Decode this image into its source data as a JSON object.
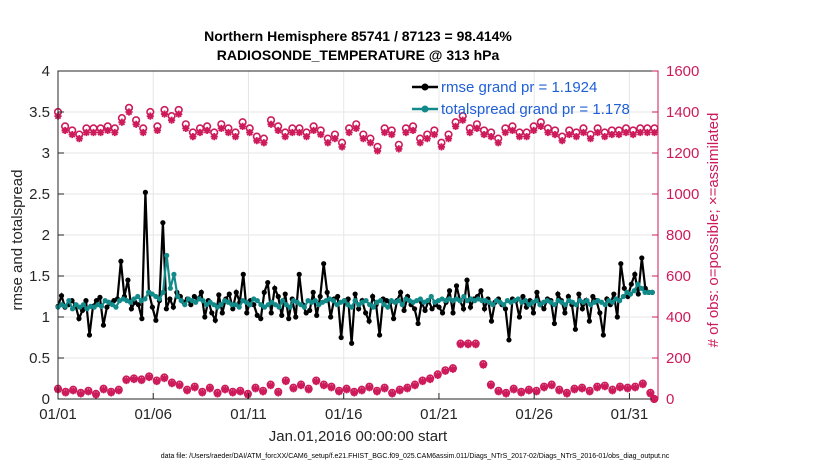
{
  "chart_data": {
    "type": "line",
    "title_line1": "Northern Hemisphere 85741 / 87123 = 98.414%",
    "title_line2": "RADIOSONDE_TEMPERATURE @ 313 hPa",
    "xlabel": "Jan.01,2016 00:00:00 start",
    "ylabel": "rmse and totalspread",
    "ylabel_right": "# of obs: o=possible; ×=assimilated",
    "xlim": [
      0,
      31.5
    ],
    "ylim": [
      0,
      4
    ],
    "ylim_right": [
      0,
      1600
    ],
    "x_ticks": [
      0,
      5,
      10,
      15,
      20,
      25,
      30
    ],
    "x_tick_labels": [
      "01/01",
      "01/06",
      "01/11",
      "01/16",
      "01/21",
      "01/26",
      "01/31"
    ],
    "y_ticks": [
      0,
      0.5,
      1,
      1.5,
      2,
      2.5,
      3,
      3.5,
      4
    ],
    "y_tick_labels": [
      "0",
      "0.5",
      "1",
      "1.5",
      "2",
      "2.5",
      "3",
      "3.5",
      "4"
    ],
    "y_right_ticks": [
      0,
      200,
      400,
      600,
      800,
      1000,
      1200,
      1400,
      1600
    ],
    "y_right_tick_labels": [
      "0",
      "200",
      "400",
      "600",
      "800",
      "1000",
      "1200",
      "1400",
      "1600"
    ],
    "legend": [
      "rmse grand pr = 1.1924",
      "totalspread grand pr = 1.178"
    ],
    "legend_location": "top-right",
    "footer": "data file: /Users/raeder/DAI/ATM_forcXX/CAM6_setup/f.e21.FHIST_BGC.f09_025.CAM6assim.011/Diags_NTrS_2017-02/Diags_NTrS_2016-01/obs_diag_output.nc",
    "colors": {
      "rmse": "#000000",
      "spread": "#138a8a",
      "counts": "#cc1a5a",
      "grid": "#e6e6e6"
    },
    "rmse": [
      1.13,
      1.26,
      1.12,
      1.15,
      1.2,
      1.14,
      0.98,
      1.08,
      1.2,
      0.78,
      1.13,
      1.2,
      1.24,
      0.9,
      1.12,
      1.17,
      1.2,
      1.22,
      1.68,
      1.25,
      1.45,
      1.1,
      1.18,
      1.15,
      0.98,
      2.52,
      1.3,
      1.12,
      0.96,
      1.2,
      2.15,
      1.1,
      1.22,
      1.12,
      1.3,
      1.25,
      1.18,
      1.22,
      1.15,
      1.25,
      1.22,
      1.3,
      1.0,
      1.2,
      1.05,
      0.96,
      1.27,
      1.05,
      1.22,
      1.28,
      1.1,
      1.3,
      1.18,
      1.52,
      1.05,
      1.2,
      1.15,
      1.02,
      0.98,
      1.3,
      1.42,
      1.05,
      1.35,
      1.25,
      1.02,
      1.28,
      0.98,
      1.22,
      1.0,
      1.52,
      1.15,
      1.05,
      1.08,
      1.3,
      1.02,
      1.25,
      1.65,
      1.3,
      1.0,
      1.22,
      1.25,
      0.75,
      1.2,
      1.22,
      0.68,
      1.28,
      1.1,
      1.2,
      1.05,
      0.95,
      1.25,
      1.15,
      0.78,
      1.22,
      1.2,
      1.18,
      0.98,
      1.2,
      1.3,
      1.08,
      1.25,
      1.15,
      1.1,
      0.92,
      1.18,
      1.08,
      1.2,
      1.1,
      1.15,
      1.12,
      1.05,
      1.18,
      1.32,
      1.05,
      1.38,
      1.2,
      1.1,
      1.45,
      1.12,
      1.22,
      1.25,
      1.32,
      1.1,
      1.22,
      0.95,
      1.18,
      1.22,
      1.15,
      1.1,
      0.72,
      1.22,
      1.2,
      1.0,
      1.25,
      1.12,
      1.2,
      1.05,
      1.3,
      1.15,
      1.1,
      1.22,
      1.2,
      0.92,
      1.28,
      1.2,
      1.05,
      1.25,
      1.15,
      0.85,
      1.28,
      1.1,
      1.2,
      0.95,
      1.25,
      1.2,
      1.05,
      0.78,
      1.22,
      1.15,
      1.28,
      1.0,
      1.65,
      1.35,
      1.25,
      1.4,
      1.52,
      1.28,
      1.72,
      1.35,
      1.3,
      1.3
    ],
    "spread": [
      1.12,
      1.15,
      1.13,
      1.2,
      1.1,
      1.15,
      1.12,
      1.15,
      1.1,
      1.13,
      1.12,
      1.15,
      1.13,
      1.2,
      1.18,
      1.15,
      1.12,
      1.2,
      1.22,
      1.2,
      1.18,
      1.22,
      1.25,
      1.2,
      1.22,
      1.3,
      1.28,
      1.25,
      1.22,
      1.3,
      1.75,
      1.35,
      1.52,
      1.25,
      1.2,
      1.15,
      1.22,
      1.2,
      1.18,
      1.22,
      1.2,
      1.15,
      1.18,
      1.15,
      1.12,
      1.15,
      1.2,
      1.18,
      1.15,
      1.15,
      1.12,
      1.2,
      1.18,
      1.15,
      1.22,
      1.2,
      1.15,
      1.12,
      1.15,
      1.18,
      1.15,
      1.12,
      1.2,
      1.15,
      1.12,
      1.2,
      1.18,
      1.15,
      1.12,
      1.2,
      1.18,
      1.2,
      1.15,
      1.18,
      1.2,
      1.22,
      1.2,
      1.15,
      1.18,
      1.2,
      1.15,
      1.12,
      1.2,
      1.15,
      1.18,
      1.2,
      1.15,
      1.12,
      1.18,
      1.2,
      1.15,
      1.12,
      1.2,
      1.18,
      1.2,
      1.15,
      1.22,
      1.2,
      1.18,
      1.2,
      1.22,
      1.18,
      1.2,
      1.25,
      1.18,
      1.2,
      1.22,
      1.2,
      1.22,
      1.2,
      1.22,
      1.2,
      1.25,
      1.2,
      1.22,
      1.2,
      1.22,
      1.2,
      1.2,
      1.18,
      1.15,
      1.2,
      1.18,
      1.15,
      1.2,
      1.18,
      1.2,
      1.22,
      1.18,
      1.2,
      1.15,
      1.18,
      1.2,
      1.15,
      1.18,
      1.2,
      1.18,
      1.15,
      1.2,
      1.18,
      1.15,
      1.2,
      1.18,
      1.15,
      1.2,
      1.18,
      1.2,
      1.15,
      1.18,
      1.2,
      1.18,
      1.15,
      1.2,
      1.18,
      1.22,
      1.2,
      1.25,
      1.3,
      1.28,
      1.32,
      1.4,
      1.35,
      1.3,
      1.3,
      1.3
    ],
    "n_possible": [
      1400,
      1320,
      1330,
      1300,
      1310,
      1260,
      1290,
      1270,
      1320,
      1310,
      1320,
      1340,
      1320,
      1360,
      1330,
      1310,
      1320,
      1310,
      1370,
      1320,
      1420,
      1360,
      1360,
      1330,
      1320,
      1430,
      1400,
      1400,
      1330,
      1370,
      1410,
      1420,
      1380,
      1400,
      1410,
      1330,
      1340,
      1330,
      1300,
      1320,
      1320,
      1340,
      1330,
      1330,
      1300,
      1300,
      1340,
      1270,
      1320,
      1320,
      1300,
      1300,
      1350,
      1290,
      1320,
      1310,
      1280,
      1350,
      1270,
      1330,
      1360,
      1280,
      1330,
      1320,
      1300,
      1290,
      1320,
      1300,
      1320,
      1380,
      1300,
      1270,
      1330,
      1300,
      1310,
      1320,
      1270,
      1280,
      1290,
      1300,
      1250,
      1230,
      1320,
      1290,
      1340,
      1320,
      1290,
      1290,
      1270,
      1310,
      1230,
      1240,
      1320,
      1290,
      1310,
      1290,
      1240,
      1280,
      1320,
      1300,
      1330,
      1300,
      1270,
      1300,
      1290,
      1330,
      1310,
      1300,
      1250,
      1280,
      1290,
      1340,
      1350,
      1360,
      1380,
      1310,
      1320,
      1290,
      1340,
      1330,
      1310,
      1320,
      1300,
      1310,
      1270,
      1330,
      1320,
      1300,
      1330,
      1320,
      1300,
      1330,
      1300,
      1320,
      1330,
      1380,
      1350,
      1360,
      1320,
      1300,
      1310,
      1330,
      1280,
      1260,
      1310,
      1320,
      1300,
      1330,
      1320,
      1310,
      1290,
      1300,
      1320,
      1290,
      1300,
      1330,
      1310,
      1320,
      1310,
      1330,
      1320,
      1300,
      1310,
      1330,
      1320,
      1310,
      1320,
      1310,
      1320
    ],
    "n_assim": [
      1380,
      1300,
      1310,
      1280,
      1290,
      1240,
      1270,
      1250,
      1300,
      1290,
      1300,
      1320,
      1300,
      1340,
      1310,
      1290,
      1300,
      1290,
      1350,
      1300,
      1400,
      1340,
      1340,
      1310,
      1300,
      1410,
      1380,
      1380,
      1310,
      1350,
      1390,
      1400,
      1360,
      1380,
      1390,
      1310,
      1320,
      1310,
      1280,
      1300,
      1300,
      1320,
      1310,
      1310,
      1280,
      1280,
      1320,
      1250,
      1300,
      1300,
      1280,
      1280,
      1330,
      1270,
      1300,
      1290,
      1260,
      1330,
      1250,
      1310,
      1340,
      1260,
      1310,
      1300,
      1280,
      1270,
      1300,
      1280,
      1300,
      1360,
      1280,
      1250,
      1310,
      1280,
      1290,
      1300,
      1250,
      1260,
      1270,
      1280,
      1230,
      1210,
      1300,
      1270,
      1320,
      1300,
      1270,
      1270,
      1250,
      1290,
      1210,
      1220,
      1300,
      1270,
      1290,
      1270,
      1220,
      1260,
      1300,
      1280,
      1310,
      1280,
      1250,
      1280,
      1270,
      1310,
      1290,
      1280,
      1230,
      1260,
      1270,
      1320,
      1330,
      1340,
      1360,
      1290,
      1300,
      1270,
      1320,
      1310,
      1290,
      1300,
      1280,
      1290,
      1250,
      1310,
      1300,
      1280,
      1310,
      1300,
      1280,
      1310,
      1280,
      1300,
      1310,
      1360,
      1330,
      1340,
      1300,
      1280,
      1290,
      1310,
      1260,
      1240,
      1290,
      1300,
      1280,
      1310,
      1300,
      1290,
      1270,
      1280,
      1300,
      1270,
      1280,
      1310,
      1290,
      1300,
      1290,
      1310,
      1300,
      1280,
      1290,
      1310,
      1300,
      1290,
      1300,
      1290,
      1300
    ],
    "n_possible_low": [
      50,
      35,
      45,
      30,
      40,
      25,
      50,
      35,
      45,
      95,
      100,
      95,
      110,
      90,
      105,
      80,
      70,
      45,
      60,
      35,
      55,
      30,
      50,
      35,
      40,
      25,
      55,
      40,
      70,
      35,
      90,
      55,
      70,
      50,
      90,
      70,
      60,
      40,
      50,
      35,
      45,
      60,
      40,
      55,
      30,
      45,
      55,
      70,
      90,
      100,
      120,
      140,
      150,
      270,
      270,
      270,
      170,
      70,
      40,
      30,
      50,
      35,
      45,
      40,
      60,
      70,
      45,
      30,
      50,
      55,
      40,
      60,
      65,
      45,
      60,
      55,
      60,
      75,
      30,
      0
    ],
    "n_assim_low": [
      45,
      30,
      40,
      25,
      35,
      20,
      45,
      30,
      40,
      90,
      95,
      90,
      105,
      85,
      100,
      75,
      65,
      40,
      55,
      30,
      50,
      25,
      45,
      30,
      35,
      20,
      50,
      35,
      65,
      30,
      85,
      50,
      65,
      45,
      85,
      65,
      55,
      35,
      45,
      30,
      40,
      55,
      35,
      50,
      25,
      40,
      50,
      65,
      85,
      95,
      115,
      135,
      145,
      265,
      265,
      265,
      165,
      65,
      35,
      25,
      45,
      30,
      40,
      35,
      55,
      65,
      40,
      25,
      45,
      50,
      35,
      55,
      60,
      40,
      55,
      50,
      55,
      70,
      25,
      0
    ]
  }
}
